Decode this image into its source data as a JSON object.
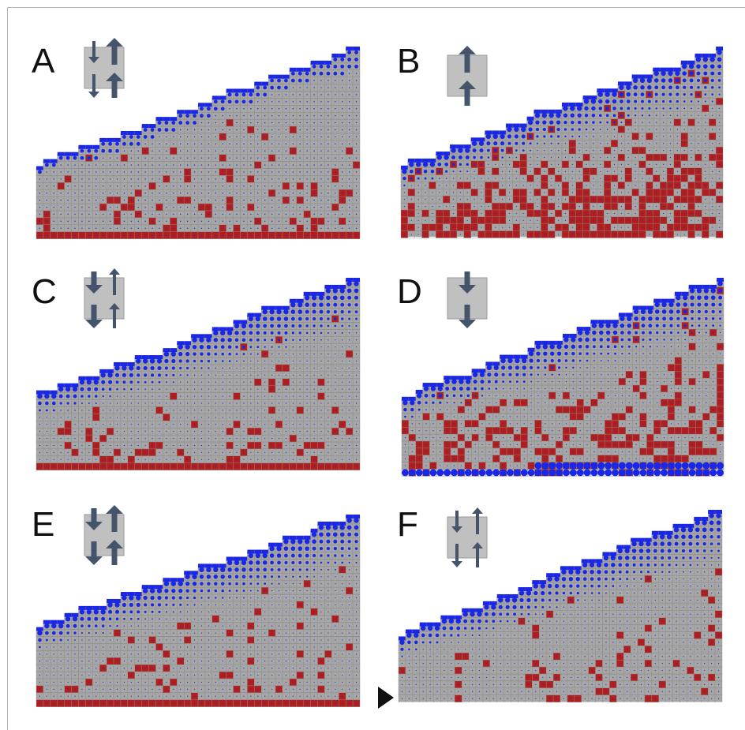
{
  "figure": {
    "panels": [
      {
        "label": "A",
        "arrows": {
          "left": "down-small",
          "right": "up-large"
        },
        "red_bottom_row": true,
        "red_density": 0.14,
        "blue_bias": "top-light",
        "seed": 11
      },
      {
        "label": "B",
        "arrows": {
          "left": "none",
          "right": "up-large"
        },
        "red_bottom_row": false,
        "red_density": 0.42,
        "blue_bias": "top-heavy",
        "seed": 23
      },
      {
        "label": "C",
        "arrows": {
          "left": "down-large",
          "right": "up-small"
        },
        "red_bottom_row": true,
        "red_density": 0.12,
        "blue_bias": "top-heavy",
        "seed": 37
      },
      {
        "label": "D",
        "arrows": {
          "left": "down-large",
          "right": "none"
        },
        "red_bottom_row": false,
        "red_density": 0.28,
        "blue_bias": "top-and-bottom",
        "seed": 41
      },
      {
        "label": "E",
        "arrows": {
          "left": "down-large",
          "right": "up-large"
        },
        "red_bottom_row": true,
        "red_density": 0.1,
        "blue_bias": "top-heavy",
        "seed": 53
      },
      {
        "label": "F",
        "arrows": {
          "left": "down-small",
          "right": "up-small"
        },
        "red_bottom_row": false,
        "red_density": 0.09,
        "blue_bias": "top-heavy",
        "seed": 67
      }
    ],
    "colors": {
      "grid_fill": "#a6a6a6",
      "grid_line": "#8a8a8a",
      "red": "#b01e1e",
      "blue": "#1a28e6",
      "arrow": "#44546a",
      "box": "#c0c0c0",
      "marker": "#111111"
    },
    "marker": "triangle-right"
  }
}
